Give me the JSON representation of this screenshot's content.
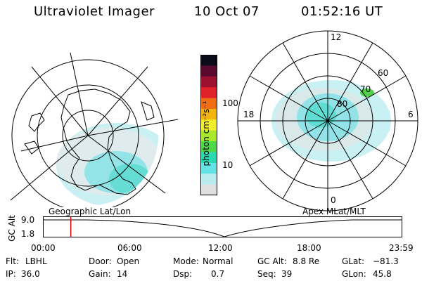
{
  "header": {
    "instrument": "Ultraviolet Imager",
    "date": "10 Oct 07",
    "time": "01:52:16 UT"
  },
  "colorbar": {
    "unit_label": "photon cm⁻²s⁻¹",
    "ticks": [
      "100",
      "10"
    ],
    "colors": [
      "#0b0b1a",
      "#5a0a2e",
      "#9c1030",
      "#e0202a",
      "#f06d14",
      "#f5b40a",
      "#f3ee2a",
      "#a9e82a",
      "#4fd84a",
      "#2ad9b0",
      "#64e2e5",
      "#b9ecef",
      "#e0e0e0"
    ]
  },
  "left_map": {
    "projection_label": "Geographic Lat/Lon"
  },
  "right_map": {
    "projection_label": "Apex MLat/MLT",
    "mlt_labels": {
      "top": "12",
      "left": "18",
      "right": "6",
      "bottom": "0"
    },
    "lat_labels": [
      "60",
      "70",
      "80"
    ]
  },
  "altitude_plot": {
    "axis_label": "GC Alt",
    "y_ticks": [
      "9.0",
      "1.8"
    ],
    "x_ticks": [
      "00:00",
      "06:00",
      "12:00",
      "18:00",
      "23:59"
    ],
    "current_time_fraction": 0.0776,
    "marker_color": "#e00000"
  },
  "info": {
    "flt_label": "Flt:",
    "flt_value": "LBHL",
    "door_label": "Door:",
    "door_value": "Open",
    "mode_label": "Mode:",
    "mode_value": "Normal",
    "gcalt_label": "GC Alt:",
    "gcalt_value": "8.8 Re",
    "glat_label": "GLat:",
    "glat_value": "−81.3",
    "ip_label": "IP:",
    "ip_value": "36.0",
    "gain_label": "Gain:",
    "gain_value": "14",
    "dsp_label": "Dsp:",
    "dsp_value": "0.7",
    "seq_label": "Seq:",
    "seq_value": "39",
    "glon_label": "GLon:",
    "glon_value": "45.8"
  }
}
